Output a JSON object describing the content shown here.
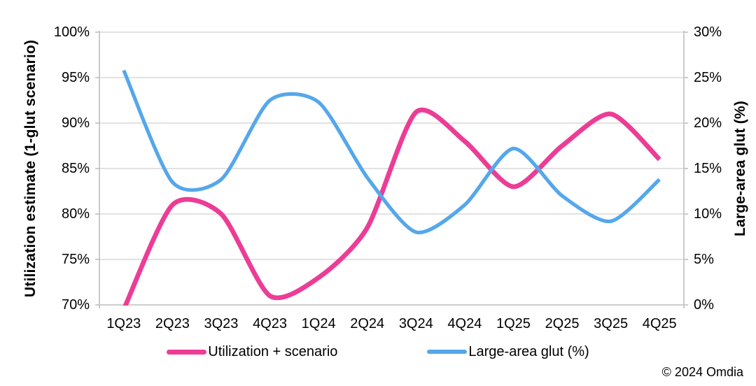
{
  "chart_data": {
    "type": "line",
    "smoothed": true,
    "grid": "horizontal",
    "legend_position": "bottom",
    "categories": [
      "1Q23",
      "2Q23",
      "3Q23",
      "4Q23",
      "1Q24",
      "2Q24",
      "3Q24",
      "4Q24",
      "1Q25",
      "2Q25",
      "3Q25",
      "4Q25"
    ],
    "series": [
      {
        "name": "Utilization + scenario",
        "axis": "left",
        "color": "#EC3D96",
        "values": [
          69.5,
          81,
          80,
          71,
          73,
          78.5,
          91.2,
          88,
          83,
          87.5,
          91,
          86
        ]
      },
      {
        "name": "Large-area glut (%)",
        "axis": "right",
        "color": "#55A7EB",
        "values": [
          25.8,
          13.5,
          13.8,
          22.5,
          22.3,
          14,
          8,
          11,
          17.2,
          12,
          9.2,
          13.8
        ]
      }
    ],
    "left_axis": {
      "title": "Utilization estimate (1-glut scenario)",
      "min": 70,
      "max": 100,
      "step": 5,
      "tick_labels": [
        "100%",
        "95%",
        "90%",
        "85%",
        "80%",
        "75%",
        "70%"
      ]
    },
    "right_axis": {
      "title": "Large-area glut (%)",
      "min": 0,
      "max": 30,
      "step": 5,
      "tick_labels": [
        "30%",
        "25%",
        "20%",
        "15%",
        "10%",
        "5%",
        "0%"
      ]
    },
    "colors": {
      "gridline": "#D9D9D9",
      "axis_line": "#BFBFBF",
      "text": "#000000"
    }
  },
  "footer": {
    "copyright": "© 2024 Omdia"
  }
}
